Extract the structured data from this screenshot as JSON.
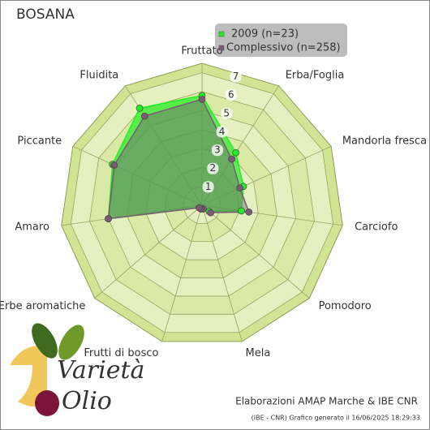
{
  "chart_data": {
    "type": "radar",
    "title": "BOSANA",
    "categories": [
      "Fruttato",
      "Erba/Foglia",
      "Mandorla fresca",
      "Carciofo",
      "Pomodoro",
      "Mela",
      "Frutti di bosco",
      "Erbe aromatiche",
      "Amaro",
      "Piccante",
      "Fluidita"
    ],
    "series": [
      {
        "name": "2009 (n=23)",
        "color": "#22ee22",
        "values": [
          5.8,
          3.3,
          2.4,
          2.1,
          0.5,
          0.2,
          0.2,
          0.2,
          5.0,
          5.2,
          6.1
        ]
      },
      {
        "name": "Complessivo (n=258)",
        "color": "#7b5a78",
        "values": [
          5.6,
          2.9,
          2.2,
          2.5,
          0.6,
          0.2,
          0.2,
          0.2,
          5.0,
          5.1,
          5.6
        ]
      }
    ],
    "rlim": [
      0,
      7.5
    ],
    "rticks": [
      1,
      2,
      3,
      4,
      5,
      6,
      7
    ],
    "legend": "top-right",
    "credits": "Elaborazioni AMAP Marche & IBE CNR",
    "footnote": "(IBE - CNR) Grafico generato il 16/06/2025 18:29:33",
    "logo": [
      "Varietà",
      "Olio"
    ]
  }
}
